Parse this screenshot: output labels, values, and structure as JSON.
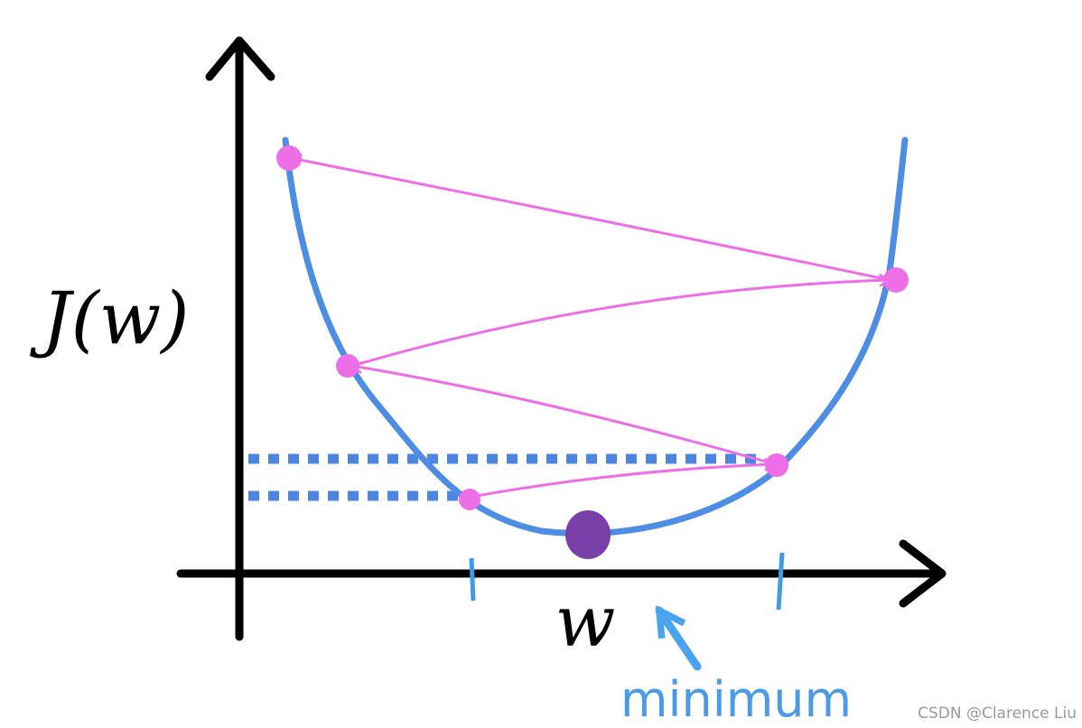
{
  "axes": {
    "y_label": "J(w)",
    "x_label": "w"
  },
  "annotation": "minimum",
  "watermark": "CSDN @Clarence Liu"
}
